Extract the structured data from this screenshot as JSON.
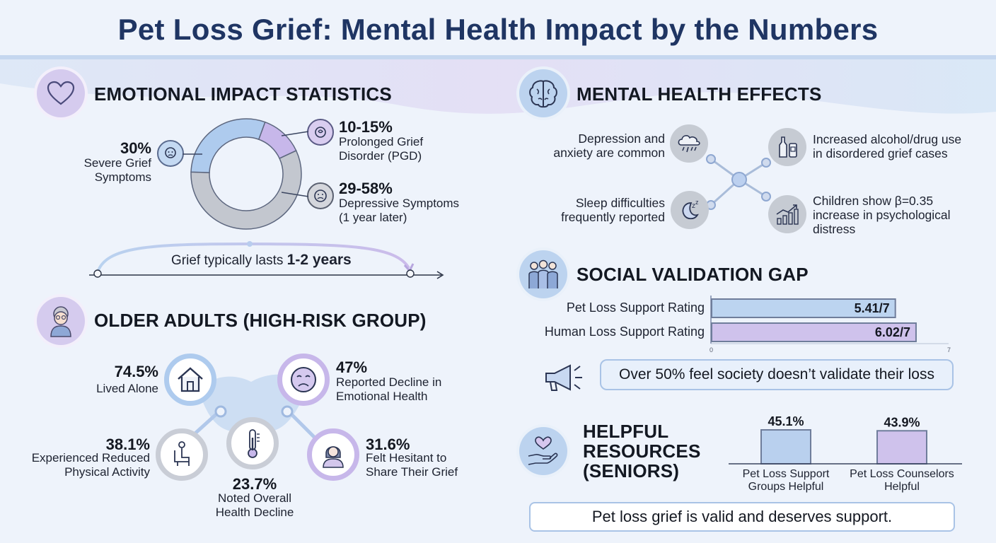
{
  "title": "Pet Loss Grief: Mental Health Impact by the Numbers",
  "emotional": {
    "heading": "EMOTIONAL IMPACT STATISTICS",
    "severe_pct": "30%",
    "severe_label": "Severe Grief Symptoms",
    "pgd_pct": "10-15%",
    "pgd_label1": "Prolonged Grief",
    "pgd_label2": "Disorder (PGD)",
    "dep_pct": "29-58%",
    "dep_label1": "Depressive Symptoms",
    "dep_label2": "(1 year later)",
    "timeline_prefix": "Grief typically lasts ",
    "timeline_bold": "1-2 years"
  },
  "older": {
    "heading": "OLDER ADULTS (HIGH-RISK GROUP)",
    "alone_pct": "74.5%",
    "alone_label": "Lived Alone",
    "emot_pct": "47%",
    "emot_label1": "Reported Decline in",
    "emot_label2": "Emotional Health",
    "phys_pct": "38.1%",
    "phys_label1": "Experienced Reduced",
    "phys_label2": "Physical Activity",
    "health_pct": "23.7%",
    "health_label1": "Noted Overall",
    "health_label2": "Health Decline",
    "hes_pct": "31.6%",
    "hes_label1": "Felt Hesitant to",
    "hes_label2": "Share Their Grief"
  },
  "mental": {
    "heading": "MENTAL HEALTH EFFECTS",
    "dep1": "Depression and",
    "dep2": "anxiety are common",
    "sleep1": "Sleep difficulties",
    "sleep2": "frequently reported",
    "alc1": "Increased alcohol/drug use",
    "alc2": "in disordered grief cases",
    "child1": "Children show β=0.35",
    "child2": "increase in psychological",
    "child3": "distress"
  },
  "social": {
    "heading": "SOCIAL VALIDATION GAP",
    "axis_min": "0",
    "axis_max": "7",
    "callout": "Over 50% feel society doesn’t validate their loss"
  },
  "resources": {
    "heading1": "HELPFUL",
    "heading2": "RESOURCES",
    "heading3": "(SENIORS)",
    "footer": "Pet loss grief is valid and deserves support."
  },
  "colors": {
    "blue": "#aecbee",
    "purple": "#c7b7ea",
    "gray": "#c3c7cf",
    "title": "#1f3563"
  },
  "chart_data": [
    {
      "type": "pie",
      "categories": [
        "Severe Grief Symptoms",
        "Prolonged Grief Disorder (PGD)",
        "Depressive Symptoms (1 year later)"
      ],
      "values": [
        30,
        12.5,
        57.5
      ]
    },
    {
      "type": "bar",
      "orientation": "horizontal",
      "categories": [
        "Pet Loss Support Rating",
        "Human Loss Support Rating"
      ],
      "values": [
        5.41,
        6.02
      ],
      "value_labels": [
        "5.41/7",
        "6.02/7"
      ],
      "xlim": [
        0,
        7
      ]
    },
    {
      "type": "bar",
      "categories": [
        "Pet Loss Support Groups Helpful",
        "Pet Loss Counselors Helpful"
      ],
      "category_lines": [
        [
          "Pet Loss Support",
          "Groups Helpful"
        ],
        [
          "Pet Loss Counselors",
          "Helpful"
        ]
      ],
      "values": [
        45.1,
        43.9
      ],
      "value_labels": [
        "45.1%",
        "43.9%"
      ]
    }
  ]
}
